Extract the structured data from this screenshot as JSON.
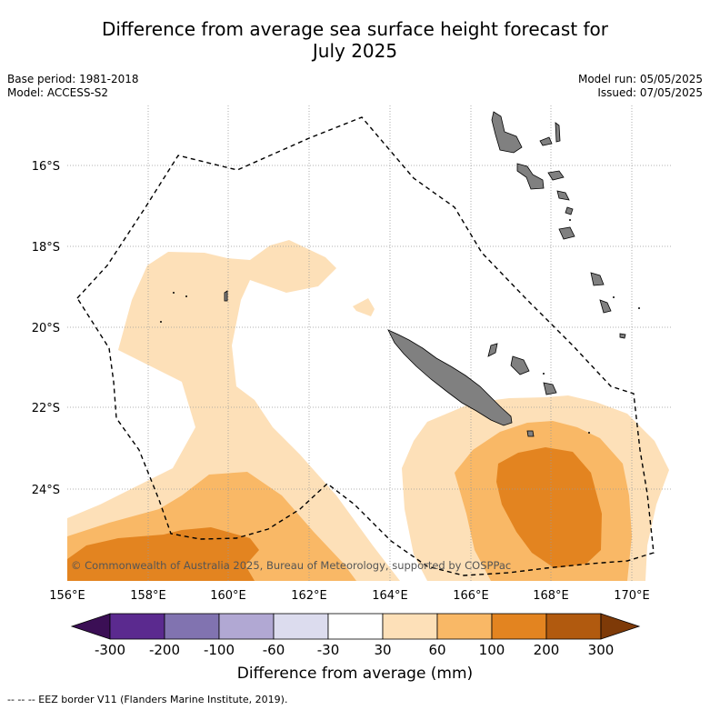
{
  "title_line1": "Difference from average sea surface height forecast for",
  "title_line2": "July 2025",
  "base_period": "Base period: 1981-2018",
  "model": "Model: ACCESS-S2",
  "model_run": "Model run: 05/05/2025",
  "issued": "Issued: 07/05/2025",
  "copyright": "© Commonwealth of Australia 2025, Bureau of Meteorology, supported by COSPPac",
  "lon_ticks": [
    "156°E",
    "158°E",
    "160°E",
    "162°E",
    "164°E",
    "166°E",
    "168°E",
    "170°E"
  ],
  "lat_ticks": [
    "16°S",
    "18°S",
    "20°S",
    "22°S",
    "24°S"
  ],
  "colorbar": {
    "labels": [
      "-300",
      "-200",
      "-100",
      "-60",
      "-30",
      "30",
      "60",
      "100",
      "200",
      "300"
    ],
    "colors": [
      "#3b0f55",
      "#5b2a8f",
      "#8173b0",
      "#b1a8d3",
      "#dcdcee",
      "#ffffff",
      "#fde0b8",
      "#f9b866",
      "#e38420",
      "#b15a0f",
      "#7e3a08"
    ],
    "title": "Difference from average (mm)"
  },
  "footnote": "--  --  -- EEZ border V11 (Flanders Marine Institute, 2019).",
  "colors": {
    "land": "#808080",
    "grid": "#999999"
  }
}
